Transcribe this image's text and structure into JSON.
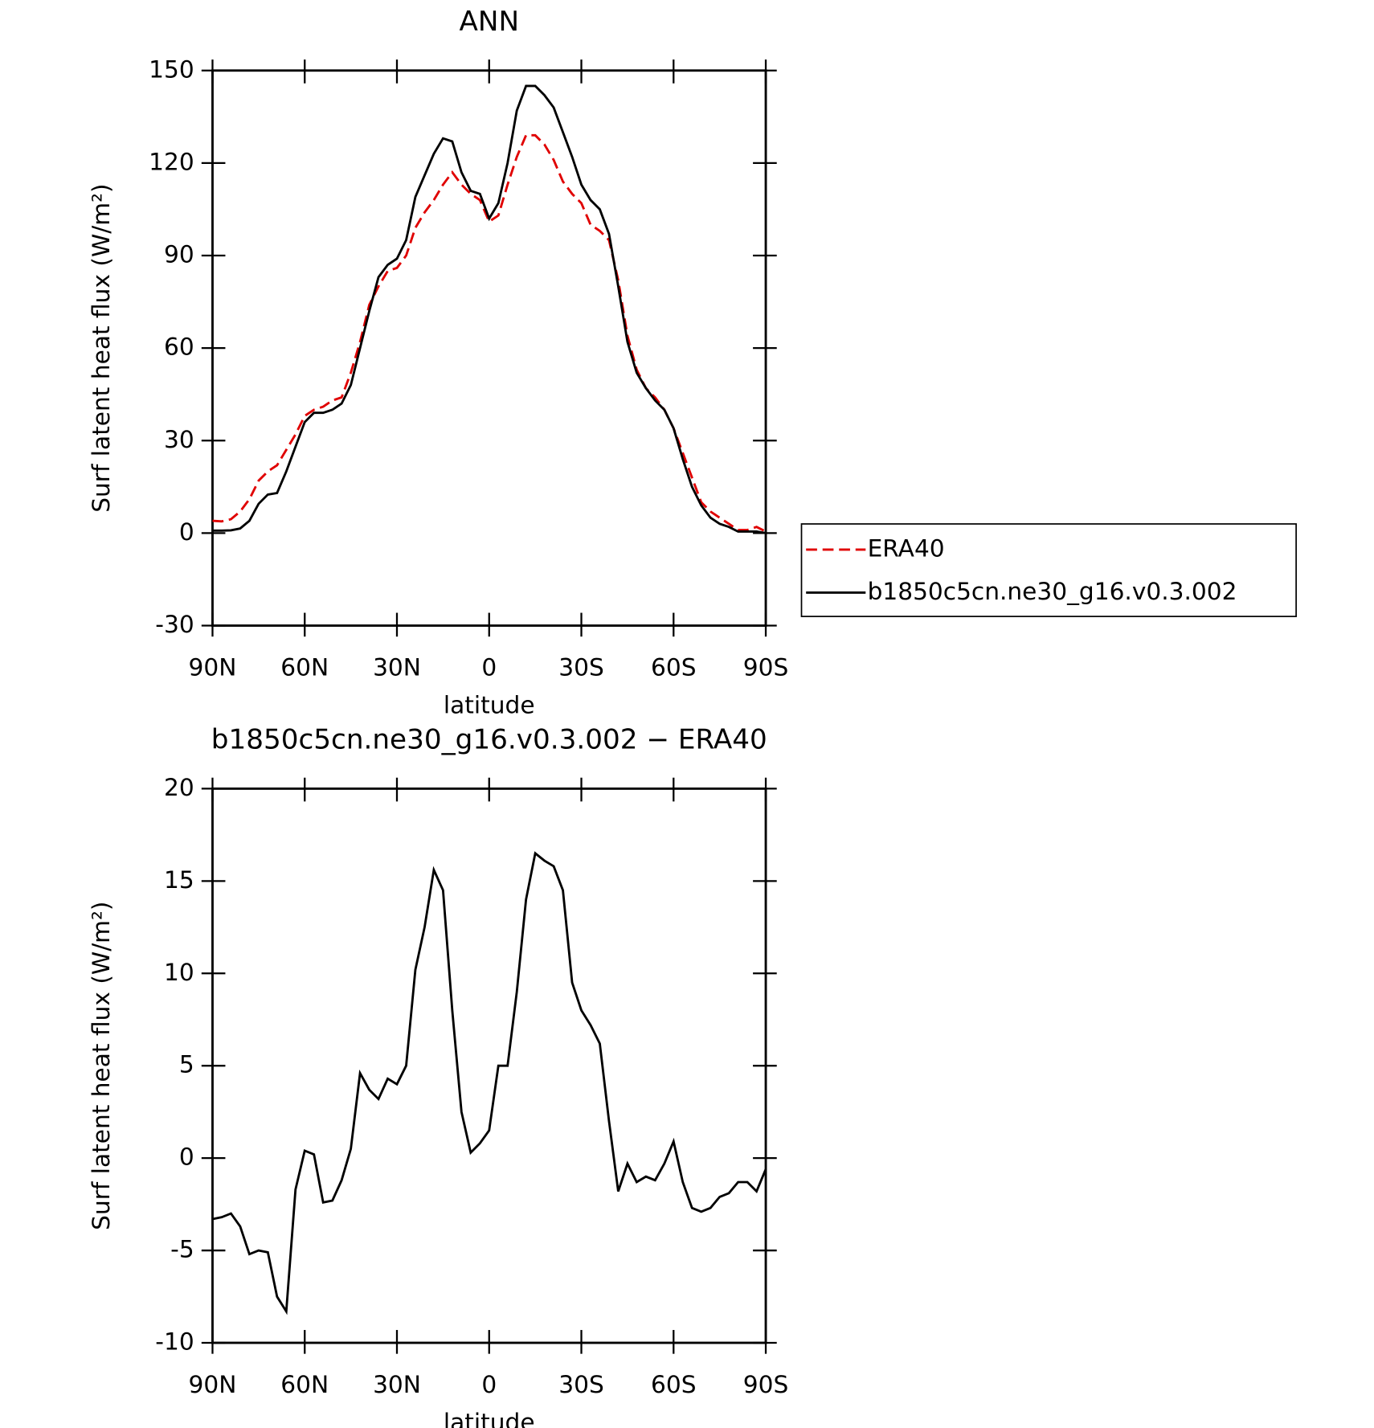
{
  "chart_data": [
    {
      "type": "line",
      "title": "ANN",
      "xlabel": "latitude",
      "ylabel": "Surf latent heat flux (W/m²)",
      "x": [
        90,
        87,
        84,
        81,
        78,
        75,
        72,
        69,
        66,
        63,
        60,
        57,
        54,
        51,
        48,
        45,
        42,
        39,
        36,
        33,
        30,
        27,
        24,
        21,
        18,
        15,
        12,
        9,
        6,
        3,
        0,
        -3,
        -6,
        -9,
        -12,
        -15,
        -18,
        -21,
        -24,
        -27,
        -30,
        -33,
        -36,
        -39,
        -42,
        -45,
        -48,
        -51,
        -54,
        -57,
        -60,
        -63,
        -66,
        -69,
        -72,
        -75,
        -78,
        -81,
        -84,
        -87,
        -90
      ],
      "xlim": [
        90,
        -90
      ],
      "xticks": [
        {
          "value": 90,
          "label": "90N"
        },
        {
          "value": 60,
          "label": "60N"
        },
        {
          "value": 30,
          "label": "30N"
        },
        0,
        {
          "value": -30,
          "label": "30S"
        },
        {
          "value": -60,
          "label": "60S"
        },
        {
          "value": -90,
          "label": "90S"
        }
      ],
      "ylim": [
        -30,
        150
      ],
      "yticks": [
        -30,
        0,
        30,
        60,
        90,
        120,
        150
      ],
      "legend": "right",
      "series": [
        {
          "name": "ERA40",
          "color": "#e00000",
          "style": "dashed",
          "values": [
            4,
            3.8,
            4.5,
            7,
            11,
            17,
            20,
            22,
            27,
            32,
            38,
            40,
            41,
            43,
            44,
            52,
            62,
            74,
            80,
            85,
            86,
            90,
            99,
            104,
            108,
            113,
            117,
            113,
            110,
            108,
            101,
            103,
            113,
            122,
            129,
            129,
            126,
            121,
            114,
            110,
            107,
            100,
            98,
            95,
            82,
            64,
            53,
            47,
            44,
            40,
            34,
            26,
            18,
            10,
            7,
            5,
            3,
            1,
            1,
            2,
            0.5
          ]
        },
        {
          "name": "b1850c5cn.ne30_g16.v0.3.002",
          "color": "#000000",
          "style": "solid",
          "values": [
            0.8,
            0.8,
            0.9,
            1.5,
            4,
            9.5,
            12.5,
            13,
            20,
            28,
            36,
            39,
            39,
            40,
            42,
            48,
            60,
            72,
            83,
            87,
            89,
            95,
            109,
            116,
            123,
            128,
            127,
            117,
            111,
            110,
            102,
            107,
            120,
            137,
            145,
            145,
            142,
            138,
            130,
            122,
            113,
            108,
            105,
            97,
            80,
            62,
            52,
            47,
            43,
            40,
            34,
            24,
            15,
            9,
            5,
            3,
            2,
            0.5,
            0.5,
            0.5,
            0
          ]
        }
      ]
    },
    {
      "type": "line",
      "title": "b1850c5cn.ne30_g16.v0.3.002 − ERA40",
      "xlabel": "latitude",
      "ylabel": "Surf latent heat flux (W/m²)",
      "x": [
        90,
        87,
        84,
        81,
        78,
        75,
        72,
        69,
        66,
        63,
        60,
        57,
        54,
        51,
        48,
        45,
        42,
        39,
        36,
        33,
        30,
        27,
        24,
        21,
        18,
        15,
        12,
        9,
        6,
        3,
        0,
        -3,
        -6,
        -9,
        -12,
        -15,
        -18,
        -21,
        -24,
        -27,
        -30,
        -33,
        -36,
        -39,
        -42,
        -45,
        -48,
        -51,
        -54,
        -57,
        -60,
        -63,
        -66,
        -69,
        -72,
        -75,
        -78,
        -81,
        -84,
        -87,
        -90
      ],
      "xlim": [
        90,
        -90
      ],
      "xticks": [
        {
          "value": 90,
          "label": "90N"
        },
        {
          "value": 60,
          "label": "60N"
        },
        {
          "value": 30,
          "label": "30N"
        },
        0,
        {
          "value": -30,
          "label": "30S"
        },
        {
          "value": -60,
          "label": "60S"
        },
        {
          "value": -90,
          "label": "90S"
        }
      ],
      "ylim": [
        -10,
        20
      ],
      "yticks": [
        -10,
        -5,
        0,
        5,
        10,
        15,
        20
      ],
      "series": [
        {
          "color": "#000000",
          "style": "solid",
          "values": [
            -3.3,
            -3.2,
            -3,
            -3.7,
            -5.2,
            -5,
            -5.1,
            -7.5,
            -8.3,
            -1.7,
            0.4,
            0.2,
            -2.4,
            -2.3,
            -1.2,
            0.5,
            4.6,
            3.7,
            3.2,
            4.3,
            4,
            5,
            10.2,
            12.5,
            15.6,
            14.5,
            8,
            2.5,
            0.3,
            0.8,
            1.5,
            5,
            5,
            9,
            14,
            16.5,
            16.1,
            15.8,
            14.5,
            9.5,
            8,
            7.2,
            6.2,
            2,
            -1.8,
            -0.3,
            -1.3,
            -1,
            -1.2,
            -0.3,
            0.9,
            -1.3,
            -2.7,
            -2.9,
            -2.7,
            -2.1,
            -1.9,
            -1.3,
            -1.3,
            -1.8,
            -0.6
          ]
        }
      ]
    }
  ]
}
